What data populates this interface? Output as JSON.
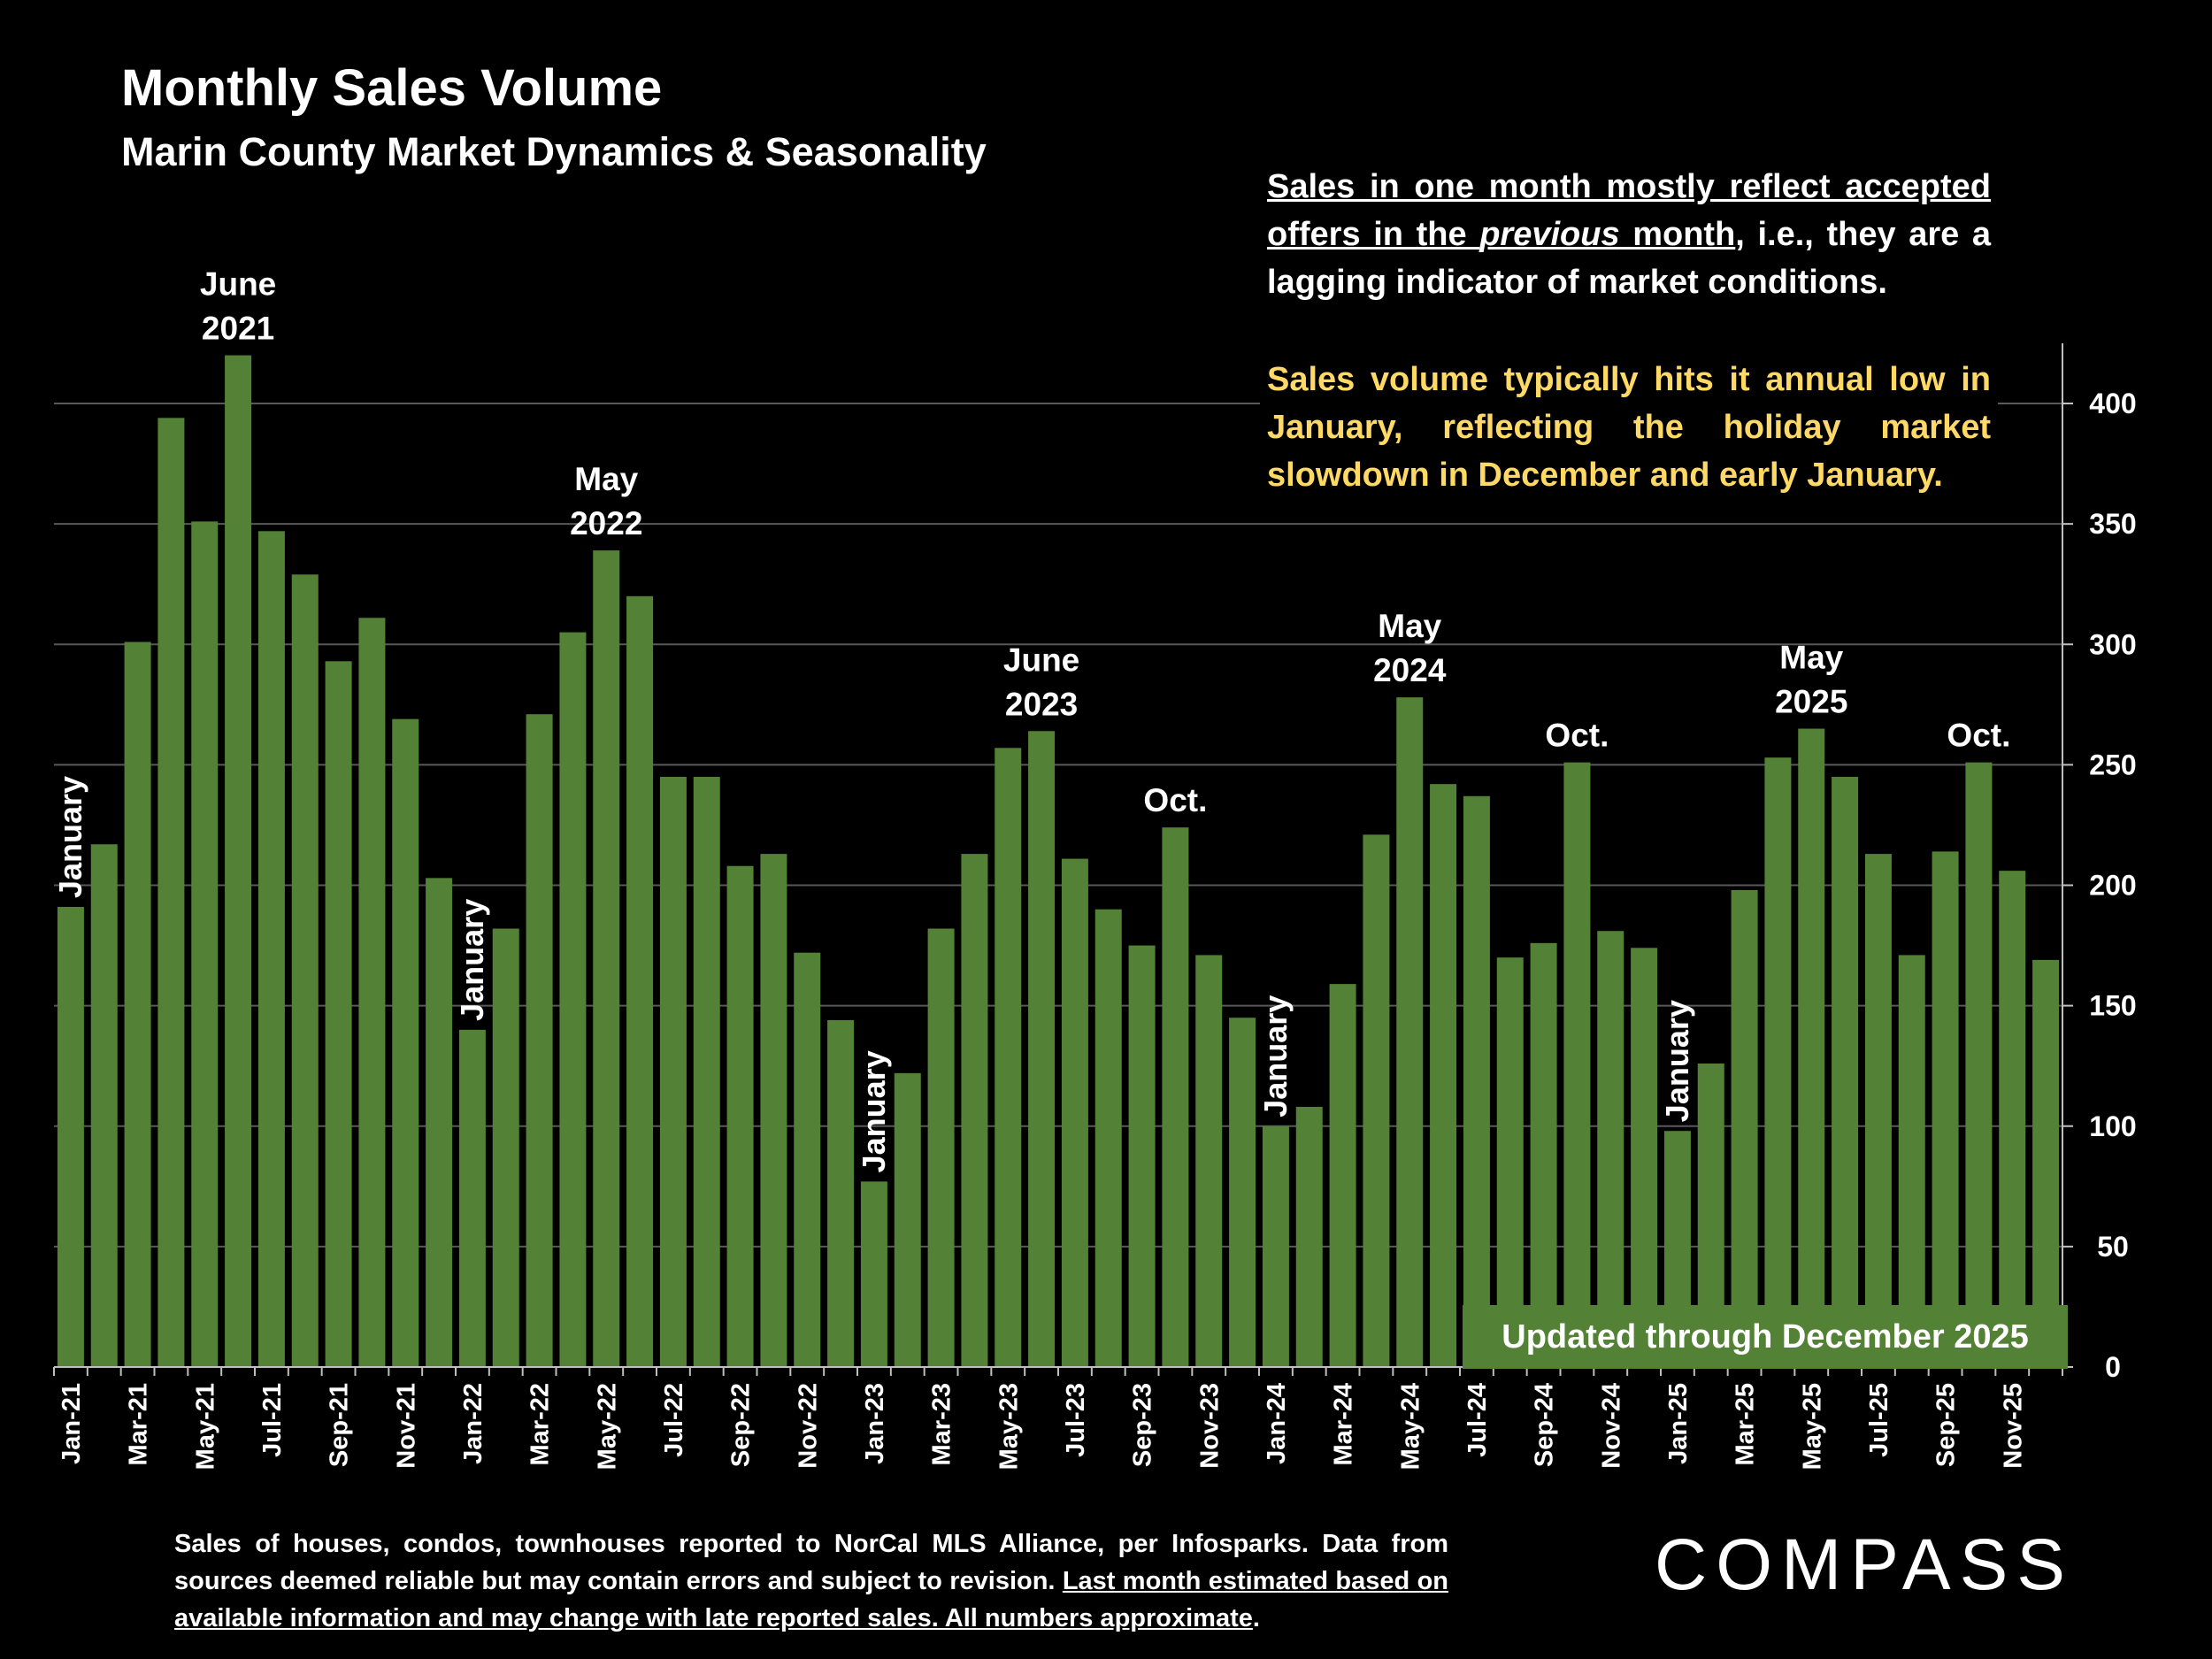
{
  "header": {
    "title": "Monthly Sales Volume",
    "subtitle": "Marin County Market Dynamics & Seasonality"
  },
  "notes": {
    "lag_underlined_1": "Sales in one month mostly reflect accepted offers in the ",
    "lag_italic": "previous",
    "lag_underlined_2": " month",
    "lag_rest": ", i.e., they are a lagging indicator of market conditions.",
    "seasonality": "Sales volume typically hits it annual low in January, reflecting the holiday market slowdown in December and early January."
  },
  "updated_label": "Updated through December 2025",
  "footer": {
    "plain": "Sales of houses, condos, townhouses reported to NorCal MLS Alliance, per Infosparks. Data from sources deemed reliable but may contain errors and subject to revision. ",
    "underlined": "Last month estimated based on available information and may change with late reported sales. All numbers approximate",
    "end": "."
  },
  "logo": "COMPASS",
  "colors": {
    "bar": "#538135",
    "grid": "#595959",
    "highlight_text": "#FFD966",
    "background": "#000000"
  },
  "chart_data": {
    "type": "bar",
    "title": "Monthly Sales Volume",
    "subtitle": "Marin County Market Dynamics & Seasonality",
    "y_axis_position": "right",
    "ylim": [
      0,
      420
    ],
    "yticks": [
      0,
      50,
      100,
      150,
      200,
      250,
      300,
      350,
      400
    ],
    "grid": true,
    "categories": [
      "Jan-21",
      "Feb-21",
      "Mar-21",
      "Apr-21",
      "May-21",
      "Jun-21",
      "Jul-21",
      "Aug-21",
      "Sep-21",
      "Oct-21",
      "Nov-21",
      "Dec-21",
      "Jan-22",
      "Feb-22",
      "Mar-22",
      "Apr-22",
      "May-22",
      "Jun-22",
      "Jul-22",
      "Aug-22",
      "Sep-22",
      "Oct-22",
      "Nov-22",
      "Dec-22",
      "Jan-23",
      "Feb-23",
      "Mar-23",
      "Apr-23",
      "May-23",
      "Jun-23",
      "Jul-23",
      "Aug-23",
      "Sep-23",
      "Oct-23",
      "Nov-23",
      "Dec-23",
      "Jan-24",
      "Feb-24",
      "Mar-24",
      "Apr-24",
      "May-24",
      "Jun-24",
      "Jul-24",
      "Aug-24",
      "Sep-24",
      "Oct-24",
      "Nov-24",
      "Dec-24",
      "Jan-25",
      "Feb-25",
      "Mar-25",
      "Apr-25",
      "May-25",
      "Jun-25",
      "Jul-25",
      "Aug-25",
      "Sep-25",
      "Oct-25",
      "Nov-25",
      "Dec-25"
    ],
    "tick_labels_shown": "every other month starting Jan-21",
    "values": [
      191,
      217,
      301,
      394,
      351,
      420,
      347,
      329,
      293,
      311,
      269,
      203,
      140,
      182,
      271,
      305,
      339,
      320,
      245,
      245,
      208,
      213,
      172,
      144,
      77,
      122,
      182,
      213,
      257,
      264,
      211,
      190,
      175,
      224,
      171,
      145,
      100,
      108,
      159,
      221,
      278,
      242,
      237,
      170,
      176,
      251,
      181,
      174,
      98,
      126,
      198,
      253,
      265,
      245,
      213,
      171,
      214,
      251,
      206,
      169
    ],
    "annotations": [
      {
        "category": "Jan-21",
        "text": [
          "January"
        ],
        "rotated": true
      },
      {
        "category": "Jun-21",
        "text": [
          "June",
          "2021"
        ],
        "rotated": false
      },
      {
        "category": "Jan-22",
        "text": [
          "January"
        ],
        "rotated": true
      },
      {
        "category": "May-22",
        "text": [
          "May",
          "2022"
        ],
        "rotated": false
      },
      {
        "category": "Jan-23",
        "text": [
          "January"
        ],
        "rotated": true
      },
      {
        "category": "Jun-23",
        "text": [
          "June",
          "2023"
        ],
        "rotated": false
      },
      {
        "category": "Oct-23",
        "text": [
          "Oct."
        ],
        "rotated": false
      },
      {
        "category": "Jan-24",
        "text": [
          "January"
        ],
        "rotated": true
      },
      {
        "category": "May-24",
        "text": [
          "May",
          "2024"
        ],
        "rotated": false
      },
      {
        "category": "Oct-24",
        "text": [
          "Oct."
        ],
        "rotated": false
      },
      {
        "category": "Jan-25",
        "text": [
          "January"
        ],
        "rotated": true
      },
      {
        "category": "May-25",
        "text": [
          "May",
          "2025"
        ],
        "rotated": false
      },
      {
        "category": "Oct-25",
        "text": [
          "Oct."
        ],
        "rotated": false
      }
    ]
  }
}
